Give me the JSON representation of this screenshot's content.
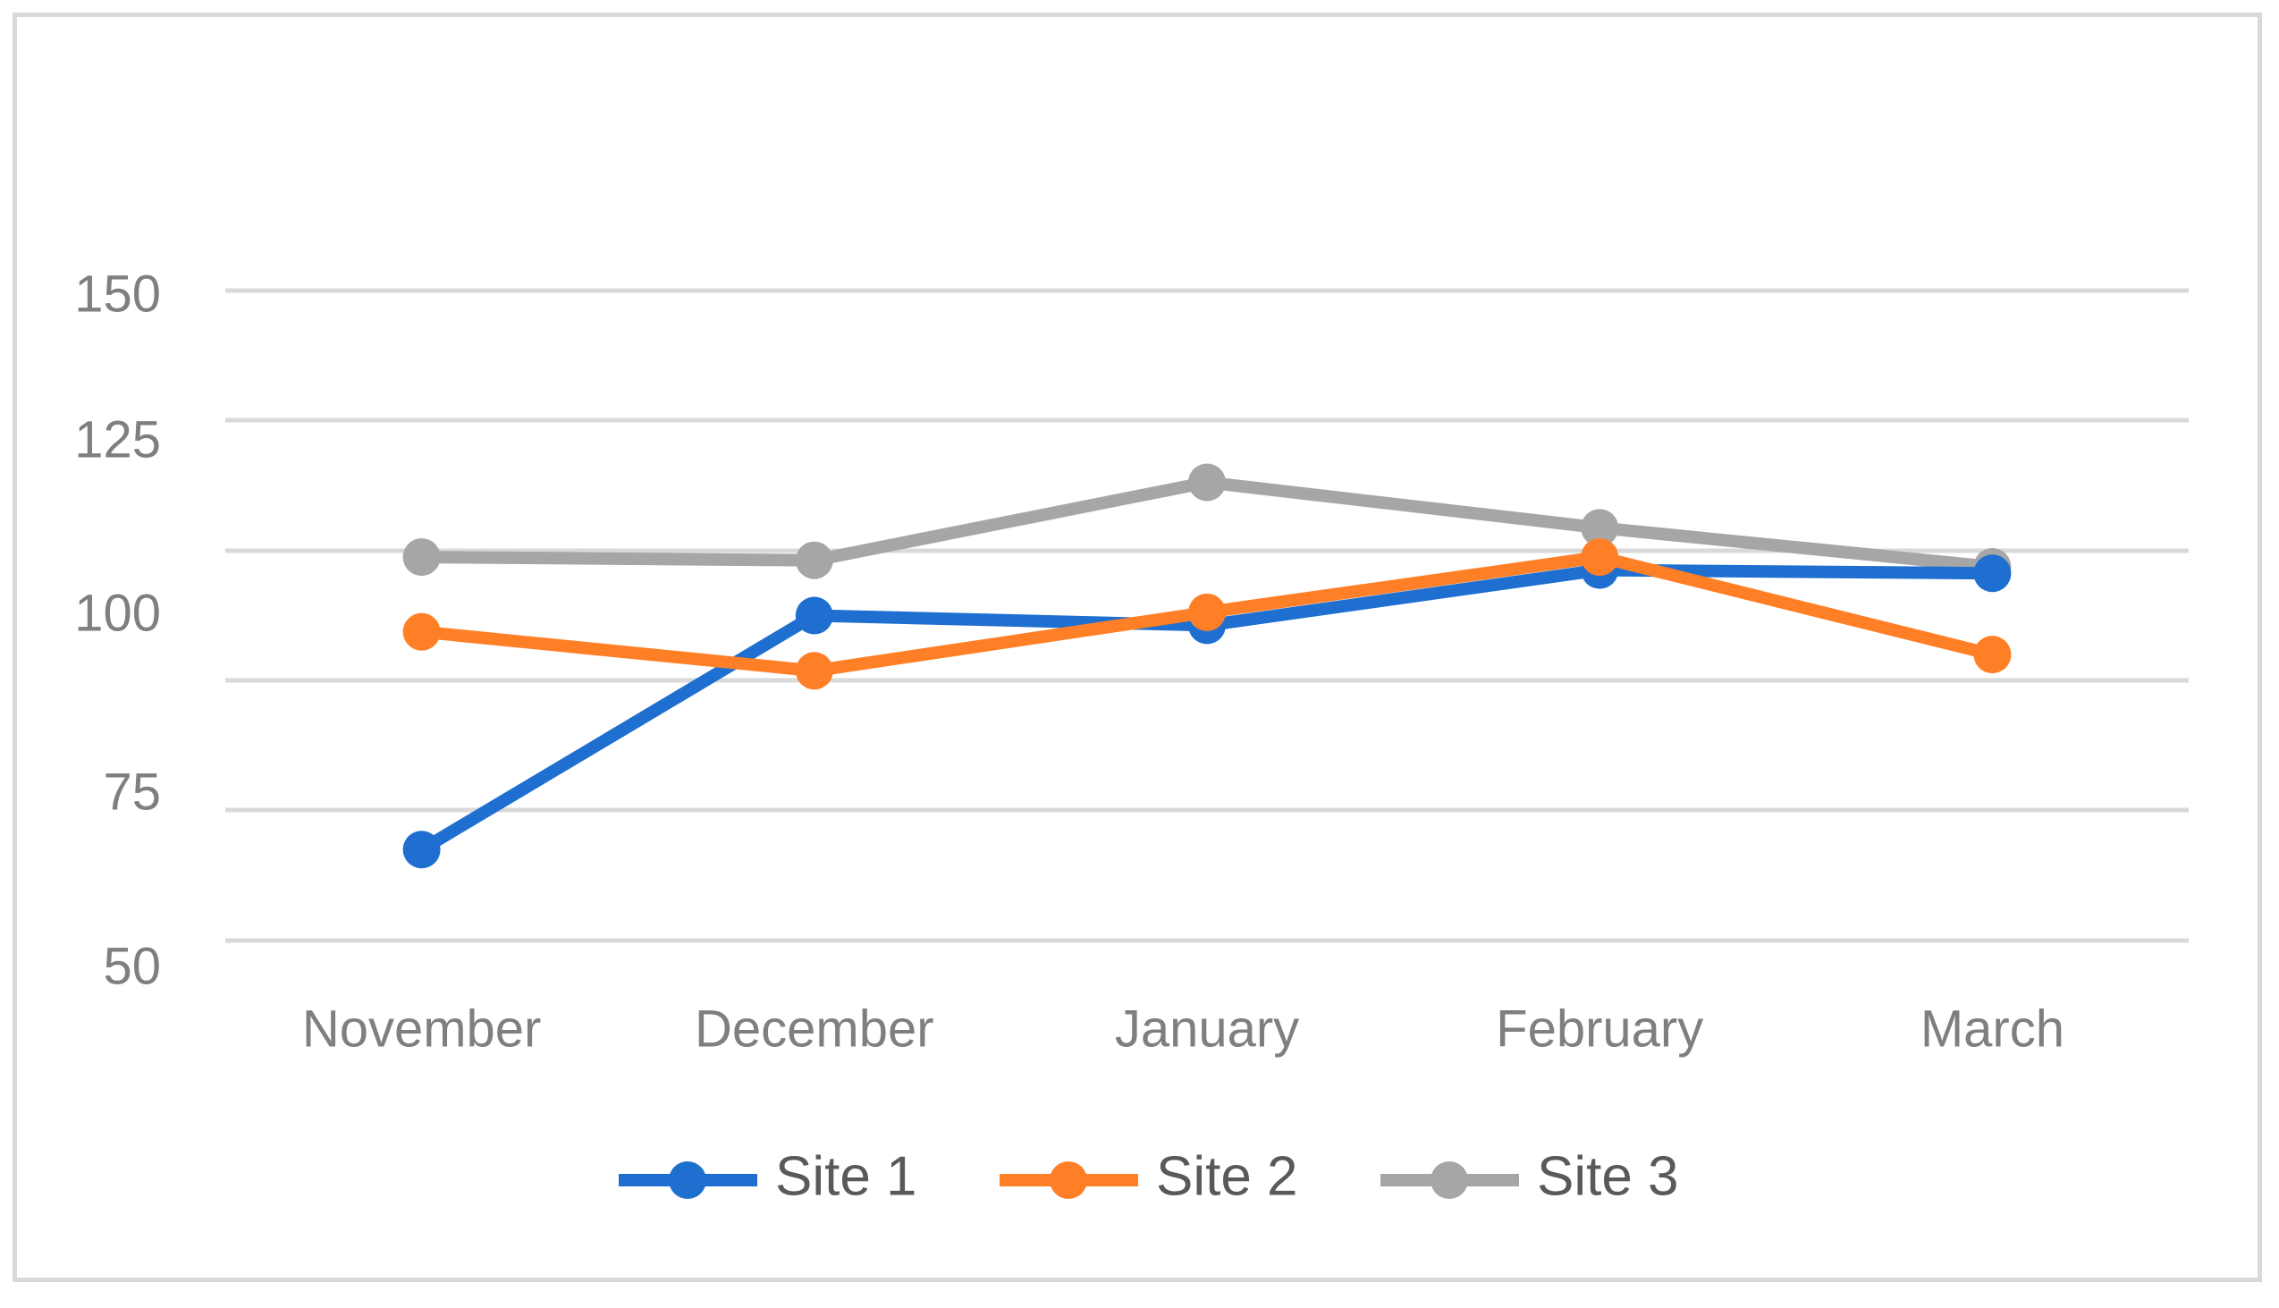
{
  "chart_data": {
    "type": "line",
    "title": "",
    "xlabel": "",
    "ylabel": "",
    "categories": [
      "November",
      "December",
      "January",
      "February",
      "March"
    ],
    "y_tick_labels": [
      "150",
      "125",
      "100",
      "75",
      "50"
    ],
    "ylim": [
      50,
      150
    ],
    "grid": true,
    "legend_position": "bottom",
    "series": [
      {
        "name": "Site 1",
        "color": "#1f6fd1",
        "values": [
          64,
          100,
          98.5,
          107,
          106.5
        ]
      },
      {
        "name": "Site 2",
        "color": "#ff7f27",
        "values": [
          97.5,
          91.5,
          100.5,
          109,
          94
        ]
      },
      {
        "name": "Site 3",
        "color": "#a6a6a6",
        "values": [
          109,
          108.5,
          120.5,
          113.5,
          107.5
        ]
      }
    ]
  }
}
